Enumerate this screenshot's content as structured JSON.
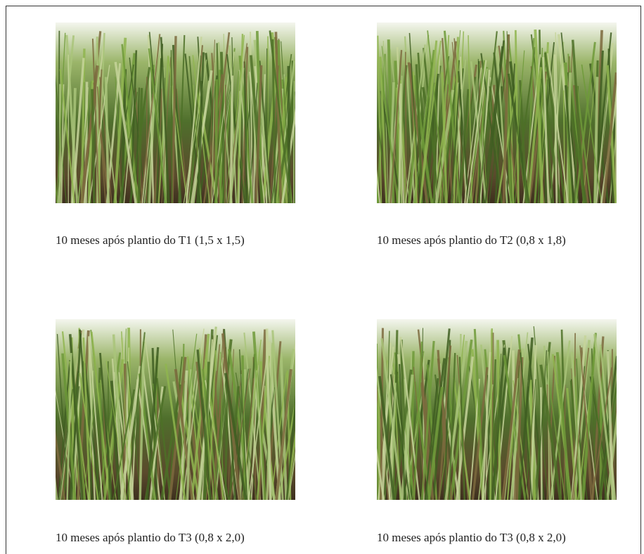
{
  "figures": [
    {
      "caption": "10 meses após plantio do T1 (1,5 x 1,5)"
    },
    {
      "caption": "10 meses após plantio do T2 (0,8 x 1,8)"
    },
    {
      "caption": "10 meses após plantio do T3 (0,8 x 2,0)"
    },
    {
      "caption": "10 meses após plantio do T3 (0,8 x 2,0)"
    }
  ]
}
